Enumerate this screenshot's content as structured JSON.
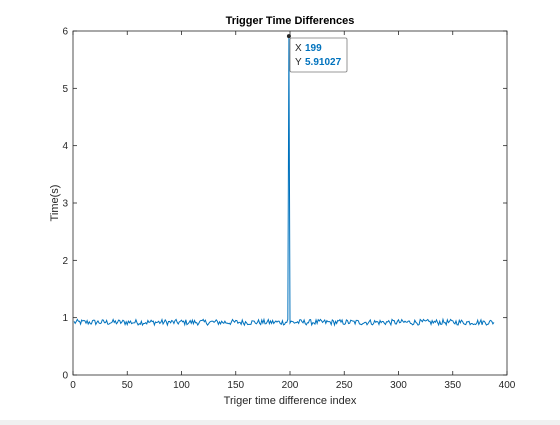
{
  "chart_data": {
    "type": "line",
    "title": "Trigger Time Differences",
    "xlabel": "Triger time difference index",
    "ylabel": "Time(s)",
    "xlim": [
      0,
      400
    ],
    "ylim": [
      0,
      6
    ],
    "xticks": [
      0,
      50,
      100,
      150,
      200,
      250,
      300,
      350,
      400
    ],
    "yticks": [
      0,
      1,
      2,
      3,
      4,
      5,
      6
    ],
    "grid": false,
    "series": [
      {
        "color": "#0072BD",
        "x_start": 1,
        "x_end": 388,
        "baseline": 0.92,
        "noise_amplitude": 0.05,
        "peak": {
          "x": 199,
          "y": 5.91027
        },
        "dip": {
          "x": 198,
          "y": 0.97
        }
      }
    ],
    "datatip": {
      "x_label": "X",
      "x_value": "199",
      "y_label": "Y",
      "y_value": "5.91027",
      "value_color": "#0072BD"
    }
  }
}
